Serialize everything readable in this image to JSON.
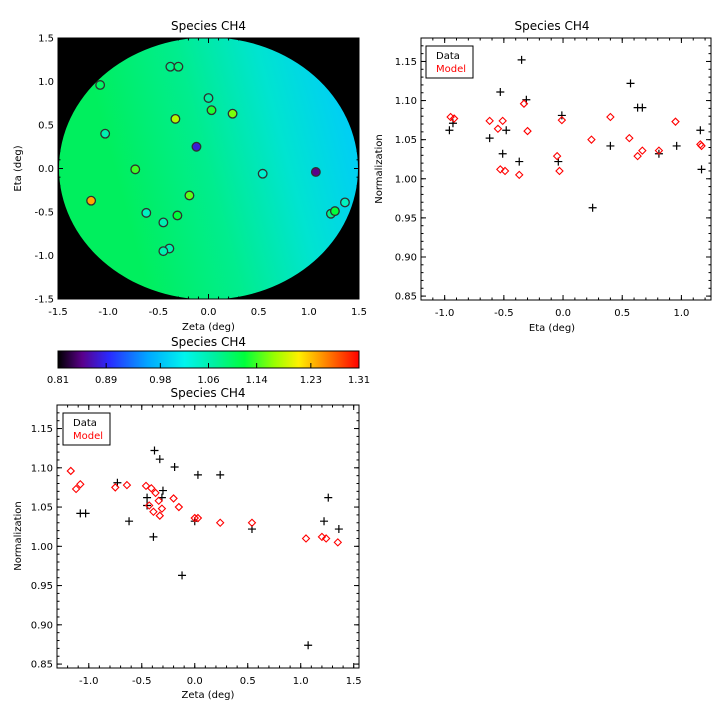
{
  "chart_data": [
    {
      "type": "heatmap-scatter",
      "title": "Species CH4",
      "xlabel": "Zeta (deg)",
      "ylabel": "Eta (deg)",
      "xlim": [
        -1.5,
        1.5
      ],
      "ylim": [
        -1.5,
        1.5
      ],
      "x_ticks": [
        "-1.5",
        "-1.0",
        "-0.5",
        "0.0",
        "0.5",
        "1.0",
        "1.5"
      ],
      "y_ticks": [
        "-1.5",
        "-1.0",
        "-0.5",
        "0.0",
        "0.5",
        "1.0",
        "1.5"
      ],
      "field_description_colors": {
        "background": "#000000"
      },
      "points": [
        {
          "zeta": -1.08,
          "eta": 0.96,
          "v": 1.1
        },
        {
          "zeta": -0.38,
          "eta": 1.17,
          "v": 1.08
        },
        {
          "zeta": -0.3,
          "eta": 1.17,
          "v": 1.09
        },
        {
          "zeta": 0.0,
          "eta": 0.81,
          "v": 1.07
        },
        {
          "zeta": 0.03,
          "eta": 0.67,
          "v": 1.13
        },
        {
          "zeta": 0.24,
          "eta": 0.63,
          "v": 1.16
        },
        {
          "zeta": -0.33,
          "eta": 0.57,
          "v": 1.18
        },
        {
          "zeta": -1.03,
          "eta": 0.4,
          "v": 1.06
        },
        {
          "zeta": -0.12,
          "eta": 0.25,
          "v": 0.88
        },
        {
          "zeta": -0.73,
          "eta": -0.01,
          "v": 1.14
        },
        {
          "zeta": 0.54,
          "eta": -0.06,
          "v": 1.04
        },
        {
          "zeta": 1.07,
          "eta": -0.04,
          "v": 0.85
        },
        {
          "zeta": -1.17,
          "eta": -0.37,
          "v": 1.24
        },
        {
          "zeta": -0.19,
          "eta": -0.31,
          "v": 1.15
        },
        {
          "zeta": -0.62,
          "eta": -0.51,
          "v": 1.05
        },
        {
          "zeta": -0.31,
          "eta": -0.54,
          "v": 1.12
        },
        {
          "zeta": -0.45,
          "eta": -0.62,
          "v": 1.06
        },
        {
          "zeta": 1.22,
          "eta": -0.52,
          "v": 1.08
        },
        {
          "zeta": 1.26,
          "eta": -0.49,
          "v": 1.12
        },
        {
          "zeta": 1.36,
          "eta": -0.39,
          "v": 1.05
        },
        {
          "zeta": -0.39,
          "eta": -0.92,
          "v": 1.06
        },
        {
          "zeta": -0.45,
          "eta": -0.95,
          "v": 1.06
        }
      ]
    },
    {
      "type": "colorbar",
      "title": "Species CH4",
      "range": [
        0.81,
        1.31
      ],
      "tick_values": [
        0.81,
        0.89,
        0.98,
        1.06,
        1.14,
        1.23,
        1.31
      ],
      "tick_labels": [
        "0.81",
        "0.89",
        "0.98",
        "1.06",
        "1.14",
        "1.23",
        "1.31"
      ]
    },
    {
      "type": "scatter",
      "title": "Species CH4",
      "xlabel": "Eta (deg)",
      "ylabel": "Normalization",
      "xlim": [
        -1.2,
        1.25
      ],
      "ylim": [
        0.845,
        1.18
      ],
      "x_ticks": [
        -1.0,
        -0.5,
        0.0,
        0.5,
        1.0
      ],
      "x_tick_labels": [
        "-1.0",
        "-0.5",
        "0.0",
        "0.5",
        "1.0"
      ],
      "y_ticks": [
        0.85,
        0.9,
        0.95,
        1.0,
        1.05,
        1.1,
        1.15
      ],
      "y_tick_labels": [
        "0.85",
        "0.90",
        "0.95",
        "1.00",
        "1.05",
        "1.10",
        "1.15"
      ],
      "legend": {
        "position": "top-left",
        "entries": [
          "Data",
          "Model"
        ],
        "colors": [
          "#000000",
          "#ff0000"
        ]
      },
      "series": [
        {
          "marker": "plus",
          "color": "#000000",
          "x": [
            -0.96,
            -0.93,
            -0.62,
            -0.53,
            -0.51,
            -0.48,
            -0.37,
            -0.35,
            -0.31,
            -0.04,
            -0.01,
            0.25,
            0.4,
            0.57,
            0.63,
            0.67,
            0.81,
            0.96,
            1.16,
            1.17
          ],
          "y": [
            1.062,
            1.071,
            1.052,
            1.111,
            1.032,
            1.062,
            1.022,
            1.152,
            1.101,
            1.022,
            1.081,
            0.963,
            1.042,
            1.122,
            1.091,
            1.091,
            1.032,
            1.042,
            1.062,
            1.012
          ]
        },
        {
          "marker": "diamond",
          "color": "#ff0000",
          "x": [
            -0.95,
            -0.92,
            -0.62,
            -0.55,
            -0.53,
            -0.51,
            -0.49,
            -0.37,
            -0.33,
            -0.3,
            -0.05,
            -0.03,
            -0.01,
            0.24,
            0.4,
            0.56,
            0.63,
            0.67,
            0.81,
            0.95,
            1.16,
            1.17
          ],
          "y": [
            1.079,
            1.077,
            1.074,
            1.064,
            1.012,
            1.074,
            1.01,
            1.005,
            1.096,
            1.061,
            1.029,
            1.01,
            1.075,
            1.05,
            1.079,
            1.052,
            1.029,
            1.036,
            1.036,
            1.073,
            1.044,
            1.042
          ]
        }
      ]
    },
    {
      "type": "scatter",
      "title": "Species CH4",
      "xlabel": "Zeta (deg)",
      "ylabel": "Normalization",
      "xlim": [
        -1.3,
        1.55
      ],
      "ylim": [
        0.845,
        1.18
      ],
      "x_ticks": [
        -1.0,
        -0.5,
        0.0,
        0.5,
        1.0,
        1.5
      ],
      "x_tick_labels": [
        "-1.0",
        "-0.5",
        "0.0",
        "0.5",
        "1.0",
        "1.5"
      ],
      "y_ticks": [
        0.85,
        0.9,
        0.95,
        1.0,
        1.05,
        1.1,
        1.15
      ],
      "y_tick_labels": [
        "0.85",
        "0.90",
        "0.95",
        "1.00",
        "1.05",
        "1.10",
        "1.15"
      ],
      "legend": {
        "position": "top-left",
        "entries": [
          "Data",
          "Model"
        ],
        "colors": [
          "#000000",
          "#ff0000"
        ]
      },
      "series": [
        {
          "marker": "plus",
          "color": "#000000",
          "x": [
            -1.08,
            -1.03,
            -0.73,
            -0.62,
            -0.45,
            -0.45,
            -0.39,
            -0.38,
            -0.33,
            -0.31,
            -0.3,
            -0.19,
            -0.12,
            0.0,
            0.03,
            0.24,
            0.54,
            1.07,
            1.22,
            1.26,
            1.36
          ],
          "y": [
            1.042,
            1.042,
            1.081,
            1.032,
            1.062,
            1.052,
            1.012,
            1.122,
            1.111,
            1.062,
            1.071,
            1.101,
            0.963,
            1.032,
            1.091,
            1.091,
            1.022,
            0.874,
            1.032,
            1.062,
            1.022
          ]
        },
        {
          "marker": "diamond",
          "color": "#ff0000",
          "x": [
            -1.17,
            -1.12,
            -1.08,
            -0.75,
            -0.64,
            -0.46,
            -0.43,
            -0.41,
            -0.39,
            -0.37,
            -0.34,
            -0.33,
            -0.31,
            -0.2,
            -0.15,
            0.0,
            0.03,
            0.24,
            0.54,
            1.05,
            1.2,
            1.24,
            1.35
          ],
          "y": [
            1.096,
            1.073,
            1.079,
            1.075,
            1.078,
            1.077,
            1.052,
            1.074,
            1.044,
            1.068,
            1.058,
            1.039,
            1.048,
            1.061,
            1.05,
            1.036,
            1.036,
            1.03,
            1.03,
            1.01,
            1.012,
            1.01,
            1.005
          ]
        }
      ]
    }
  ]
}
